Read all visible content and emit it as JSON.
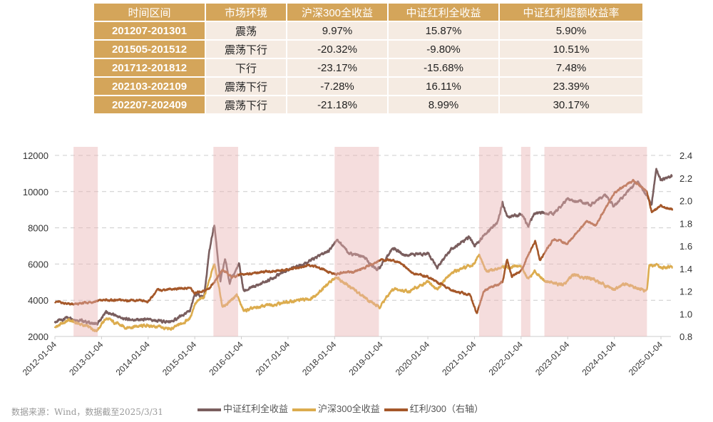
{
  "table": {
    "headers": [
      "时间区间",
      "市场环境",
      "沪深300全收益",
      "中证红利全收益",
      "中证红利超额收益率"
    ],
    "rows": [
      [
        "201207-201301",
        "震荡",
        "9.97%",
        "15.87%",
        "5.90%"
      ],
      [
        "201505-201512",
        "震荡下行",
        "-20.32%",
        "-9.80%",
        "10.51%"
      ],
      [
        "201712-201812",
        "下行",
        "-23.17%",
        "-15.68%",
        "7.48%"
      ],
      [
        "202103-202109",
        "震荡下行",
        "-7.28%",
        "16.11%",
        "23.39%"
      ],
      [
        "202207-202409",
        "震荡下行",
        "-21.18%",
        "8.99%",
        "30.17%"
      ]
    ]
  },
  "source": "数据来源：Wind，数据截至2025/3/31",
  "chart_data": {
    "type": "line",
    "xticks": [
      "2012-01-04",
      "2013-01-04",
      "2014-01-04",
      "2015-01-04",
      "2016-01-04",
      "2017-01-04",
      "2018-01-04",
      "2019-01-04",
      "2020-01-04",
      "2021-01-04",
      "2022-01-04",
      "2023-01-04",
      "2024-01-04",
      "2025-01-04"
    ],
    "ylim": [
      2000,
      12000
    ],
    "yticks": [
      "2000",
      "4000",
      "6000",
      "8000",
      "10000",
      "12000"
    ],
    "y2lim": [
      0.8,
      2.4
    ],
    "y2ticks": [
      "0.8",
      "1.0",
      "1.2",
      "1.4",
      "1.6",
      "1.8",
      "2.0",
      "2.2",
      "2.4"
    ],
    "grid": true,
    "legend_placement": "bottom",
    "shaded_periods": [
      [
        2012.4,
        2012.92
      ],
      [
        2015.4,
        2015.93
      ],
      [
        2018.0,
        2018.95
      ],
      [
        2021.1,
        2021.6
      ],
      [
        2022.0,
        2022.2
      ],
      [
        2022.5,
        2024.7
      ]
    ],
    "series": [
      {
        "name": "中证红利全收益",
        "color": "#7a5e5e",
        "axis": "left",
        "points": [
          [
            2012.0,
            2800
          ],
          [
            2012.3,
            3050
          ],
          [
            2012.9,
            2650
          ],
          [
            2013.1,
            3350
          ],
          [
            2013.5,
            2950
          ],
          [
            2014.0,
            2900
          ],
          [
            2014.5,
            2800
          ],
          [
            2014.9,
            3400
          ],
          [
            2015.0,
            4300
          ],
          [
            2015.2,
            4200
          ],
          [
            2015.3,
            6500
          ],
          [
            2015.42,
            8200
          ],
          [
            2015.55,
            5000
          ],
          [
            2015.65,
            6300
          ],
          [
            2015.75,
            5000
          ],
          [
            2015.95,
            6000
          ],
          [
            2016.05,
            4500
          ],
          [
            2016.5,
            5000
          ],
          [
            2017.0,
            5700
          ],
          [
            2017.5,
            6200
          ],
          [
            2017.9,
            6800
          ],
          [
            2018.05,
            7400
          ],
          [
            2018.3,
            6600
          ],
          [
            2018.6,
            6400
          ],
          [
            2018.9,
            5700
          ],
          [
            2019.0,
            5900
          ],
          [
            2019.25,
            6900
          ],
          [
            2019.5,
            6500
          ],
          [
            2020.0,
            6600
          ],
          [
            2020.2,
            5800
          ],
          [
            2020.5,
            6800
          ],
          [
            2020.9,
            7500
          ],
          [
            2021.0,
            7000
          ],
          [
            2021.2,
            7600
          ],
          [
            2021.5,
            8300
          ],
          [
            2021.6,
            9400
          ],
          [
            2021.7,
            8600
          ],
          [
            2022.0,
            8800
          ],
          [
            2022.15,
            8100
          ],
          [
            2022.3,
            8800
          ],
          [
            2022.7,
            8800
          ],
          [
            2023.0,
            9600
          ],
          [
            2023.5,
            9300
          ],
          [
            2023.8,
            9800
          ],
          [
            2024.0,
            9200
          ],
          [
            2024.5,
            10600
          ],
          [
            2024.8,
            9300
          ],
          [
            2024.9,
            11300
          ],
          [
            2025.0,
            10600
          ],
          [
            2025.25,
            10900
          ]
        ]
      },
      {
        "name": "沪深300全收益",
        "color": "#dcac4e",
        "axis": "left",
        "points": [
          [
            2012.0,
            2500
          ],
          [
            2012.3,
            2900
          ],
          [
            2012.9,
            2350
          ],
          [
            2013.1,
            3000
          ],
          [
            2013.5,
            2500
          ],
          [
            2014.0,
            2600
          ],
          [
            2014.5,
            2400
          ],
          [
            2014.9,
            3000
          ],
          [
            2015.0,
            3800
          ],
          [
            2015.2,
            4200
          ],
          [
            2015.42,
            6000
          ],
          [
            2015.6,
            3600
          ],
          [
            2015.9,
            4300
          ],
          [
            2016.05,
            3400
          ],
          [
            2016.5,
            3700
          ],
          [
            2017.0,
            3900
          ],
          [
            2017.5,
            4100
          ],
          [
            2018.05,
            5300
          ],
          [
            2018.3,
            4800
          ],
          [
            2018.95,
            3600
          ],
          [
            2019.25,
            4600
          ],
          [
            2019.6,
            4500
          ],
          [
            2020.0,
            5000
          ],
          [
            2020.2,
            4600
          ],
          [
            2020.5,
            5500
          ],
          [
            2021.0,
            6000
          ],
          [
            2021.1,
            6500
          ],
          [
            2021.25,
            5600
          ],
          [
            2021.6,
            5800
          ],
          [
            2022.0,
            5900
          ],
          [
            2022.15,
            5200
          ],
          [
            2022.3,
            5600
          ],
          [
            2022.5,
            5100
          ],
          [
            2022.9,
            4800
          ],
          [
            2023.1,
            5400
          ],
          [
            2023.5,
            5200
          ],
          [
            2024.0,
            4600
          ],
          [
            2024.2,
            4900
          ],
          [
            2024.7,
            4500
          ],
          [
            2024.75,
            6000
          ],
          [
            2025.0,
            5800
          ],
          [
            2025.25,
            5800
          ]
        ]
      },
      {
        "name": "红利/300（右轴）",
        "color": "#a5582a",
        "axis": "right",
        "points": [
          [
            2012.0,
            1.11
          ],
          [
            2012.4,
            1.08
          ],
          [
            2013.0,
            1.12
          ],
          [
            2013.5,
            1.12
          ],
          [
            2014.0,
            1.11
          ],
          [
            2014.2,
            1.21
          ],
          [
            2014.9,
            1.23
          ],
          [
            2015.0,
            1.18
          ],
          [
            2015.3,
            1.22
          ],
          [
            2015.45,
            1.3
          ],
          [
            2015.6,
            1.39
          ],
          [
            2015.8,
            1.32
          ],
          [
            2016.0,
            1.35
          ],
          [
            2017.0,
            1.39
          ],
          [
            2017.5,
            1.43
          ],
          [
            2018.0,
            1.35
          ],
          [
            2018.5,
            1.38
          ],
          [
            2019.0,
            1.48
          ],
          [
            2019.4,
            1.46
          ],
          [
            2019.7,
            1.35
          ],
          [
            2020.0,
            1.33
          ],
          [
            2020.5,
            1.21
          ],
          [
            2020.9,
            1.17
          ],
          [
            2021.05,
            1.0
          ],
          [
            2021.2,
            1.2
          ],
          [
            2021.6,
            1.28
          ],
          [
            2021.7,
            1.48
          ],
          [
            2021.8,
            1.33
          ],
          [
            2022.0,
            1.38
          ],
          [
            2022.3,
            1.65
          ],
          [
            2022.4,
            1.47
          ],
          [
            2022.7,
            1.66
          ],
          [
            2023.0,
            1.62
          ],
          [
            2023.4,
            1.82
          ],
          [
            2023.6,
            1.78
          ],
          [
            2024.0,
            2.07
          ],
          [
            2024.4,
            2.18
          ],
          [
            2024.7,
            2.08
          ],
          [
            2024.8,
            1.9
          ],
          [
            2025.0,
            1.95
          ],
          [
            2025.25,
            1.92
          ]
        ]
      }
    ]
  }
}
